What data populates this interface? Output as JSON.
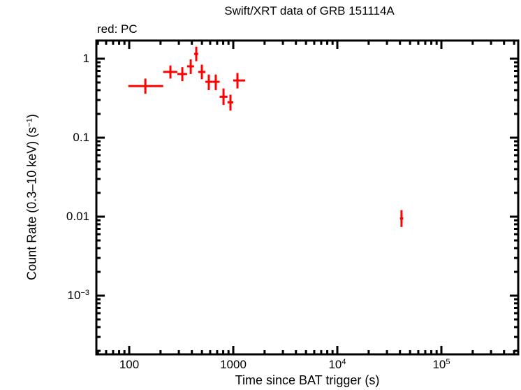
{
  "chart_data": {
    "type": "scatter",
    "title": "Swift/XRT data of GRB 151114A",
    "subtitle": "red: PC",
    "xlabel": "Time since BAT trigger (s)",
    "ylabel": "Count Rate (0.3–10 keV) (s⁻¹)",
    "xscale": "log",
    "yscale": "log",
    "xlim": [
      48,
      600000
    ],
    "ylim": [
      0.00011,
      1.7
    ],
    "grid": false,
    "legend": "none",
    "x_ticks": [
      {
        "value": 100,
        "label": "100"
      },
      {
        "value": 1000,
        "label": "1000"
      },
      {
        "value": 10000,
        "label": "10",
        "exp": "4"
      },
      {
        "value": 100000,
        "label": "10",
        "exp": "5"
      }
    ],
    "y_ticks": [
      {
        "value": 1,
        "label": "1"
      },
      {
        "value": 0.1,
        "label": "0.1"
      },
      {
        "value": 0.01,
        "label": "0.01"
      },
      {
        "value": 0.001,
        "label": "10",
        "exp": "−3"
      }
    ],
    "series": [
      {
        "name": "PC",
        "color": "#ff0000",
        "points": [
          {
            "x": 143,
            "xlo": 98,
            "xhi": 212,
            "y": 0.45,
            "ylo": 0.36,
            "yhi": 0.56
          },
          {
            "x": 249,
            "xlo": 212,
            "xhi": 290,
            "y": 0.68,
            "ylo": 0.56,
            "yhi": 0.82
          },
          {
            "x": 324,
            "xlo": 290,
            "xhi": 360,
            "y": 0.64,
            "ylo": 0.52,
            "yhi": 0.78
          },
          {
            "x": 390,
            "xlo": 360,
            "xhi": 420,
            "y": 0.8,
            "ylo": 0.64,
            "yhi": 0.98
          },
          {
            "x": 441,
            "xlo": 420,
            "xhi": 460,
            "y": 1.15,
            "ylo": 0.93,
            "yhi": 1.42
          },
          {
            "x": 499,
            "xlo": 460,
            "xhi": 540,
            "y": 0.68,
            "ylo": 0.55,
            "yhi": 0.84
          },
          {
            "x": 582,
            "xlo": 540,
            "xhi": 630,
            "y": 0.51,
            "ylo": 0.4,
            "yhi": 0.63
          },
          {
            "x": 679,
            "xlo": 630,
            "xhi": 740,
            "y": 0.51,
            "ylo": 0.4,
            "yhi": 0.63
          },
          {
            "x": 806,
            "xlo": 740,
            "xhi": 880,
            "y": 0.33,
            "ylo": 0.26,
            "yhi": 0.42
          },
          {
            "x": 940,
            "xlo": 880,
            "xhi": 1000,
            "y": 0.28,
            "ylo": 0.22,
            "yhi": 0.35
          },
          {
            "x": 1097,
            "xlo": 1000,
            "xhi": 1300,
            "y": 0.53,
            "ylo": 0.42,
            "yhi": 0.66
          },
          {
            "x": 41400,
            "xlo": 40000,
            "xhi": 43000,
            "y": 0.0095,
            "ylo": 0.0074,
            "yhi": 0.0121
          }
        ]
      }
    ]
  }
}
